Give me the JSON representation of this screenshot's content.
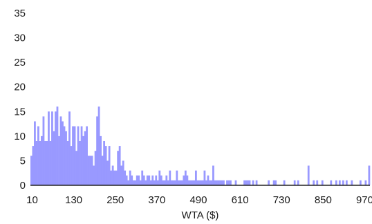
{
  "chart_data": {
    "type": "bar",
    "title": "",
    "xlabel": "WTA ($)",
    "ylabel": "",
    "ylim": [
      0,
      35
    ],
    "xlim": [
      5,
      985
    ],
    "bin_width": 5,
    "grid": false,
    "bar_color": "#9999ff",
    "axis_color": "#222222",
    "x_ticks": [
      10,
      130,
      250,
      370,
      490,
      610,
      730,
      850,
      970
    ],
    "y_ticks": [
      0,
      5,
      10,
      15,
      20,
      25,
      30,
      35
    ],
    "x": [
      5,
      10,
      15,
      20,
      25,
      30,
      35,
      40,
      45,
      50,
      55,
      60,
      65,
      70,
      75,
      80,
      85,
      90,
      95,
      100,
      105,
      110,
      115,
      120,
      125,
      130,
      135,
      140,
      145,
      150,
      155,
      160,
      165,
      170,
      175,
      180,
      185,
      190,
      195,
      200,
      205,
      210,
      215,
      220,
      225,
      230,
      235,
      240,
      245,
      250,
      255,
      260,
      265,
      270,
      275,
      280,
      285,
      290,
      295,
      300,
      305,
      310,
      315,
      320,
      325,
      330,
      335,
      340,
      345,
      350,
      355,
      360,
      365,
      370,
      375,
      380,
      385,
      390,
      395,
      400,
      405,
      410,
      415,
      420,
      425,
      430,
      435,
      440,
      445,
      450,
      455,
      460,
      465,
      470,
      475,
      480,
      485,
      490,
      495,
      500,
      505,
      510,
      515,
      520,
      525,
      530,
      535,
      540,
      545,
      550,
      555,
      560,
      565,
      570,
      575,
      580,
      585,
      590,
      595,
      600,
      605,
      610,
      615,
      620,
      625,
      630,
      635,
      640,
      645,
      650,
      655,
      660,
      665,
      670,
      675,
      680,
      685,
      690,
      695,
      700,
      705,
      710,
      715,
      720,
      725,
      730,
      735,
      740,
      745,
      750,
      755,
      760,
      765,
      770,
      775,
      780,
      785,
      790,
      795,
      800,
      805,
      810,
      815,
      820,
      825,
      830,
      835,
      840,
      845,
      850,
      855,
      860,
      865,
      870,
      875,
      880,
      885,
      890,
      895,
      900,
      905,
      910,
      915,
      920,
      925,
      930,
      935,
      940,
      945,
      950,
      955,
      960,
      965,
      970,
      975,
      980
    ],
    "values": [
      6,
      8,
      13,
      9,
      12,
      9,
      10,
      14,
      9,
      9,
      15,
      9,
      15,
      11,
      15,
      16,
      10,
      14,
      13,
      12,
      11,
      9,
      15,
      8,
      12,
      12,
      7,
      12,
      9,
      12,
      10,
      11,
      12,
      6,
      6,
      6,
      4,
      7,
      14,
      16,
      10,
      6,
      9,
      8,
      5,
      8,
      3,
      4,
      3,
      3,
      7,
      8,
      4,
      5,
      3,
      2,
      1,
      3,
      2,
      1,
      1,
      2,
      2,
      1,
      3,
      2,
      1,
      2,
      2,
      1,
      2,
      1,
      2,
      1,
      3,
      2,
      1,
      1,
      2,
      1,
      3,
      1,
      1,
      1,
      3,
      1,
      1,
      1,
      2,
      3,
      2,
      1,
      1,
      1,
      1,
      3,
      1,
      1,
      1,
      1,
      3,
      1,
      2,
      1,
      1,
      4,
      1,
      1,
      1,
      1,
      1,
      1,
      0,
      1,
      1,
      1,
      0,
      0,
      1,
      0,
      0,
      0,
      0,
      1,
      1,
      1,
      1,
      0,
      1,
      0,
      1,
      0,
      0,
      0,
      0,
      0,
      0,
      1,
      0,
      0,
      1,
      1,
      0,
      0,
      0,
      0,
      1,
      0,
      0,
      0,
      0,
      0,
      1,
      0,
      1,
      0,
      0,
      0,
      0,
      0,
      4,
      0,
      0,
      1,
      0,
      1,
      0,
      0,
      1,
      0,
      0,
      0,
      0,
      1,
      0,
      0,
      1,
      0,
      1,
      0,
      1,
      0,
      1,
      0,
      0,
      1,
      0,
      0,
      0,
      0,
      1,
      0,
      0,
      1,
      0,
      4
    ]
  }
}
